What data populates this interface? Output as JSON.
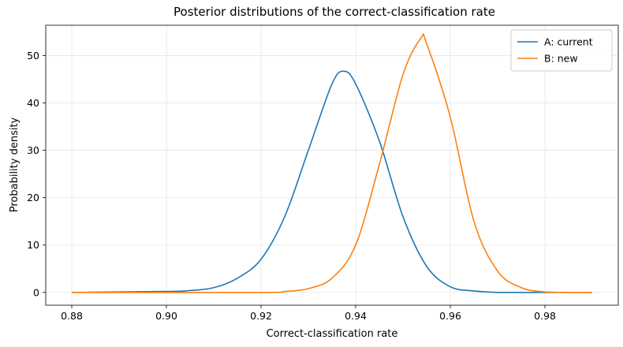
{
  "chart_data": {
    "type": "line",
    "title": "Posterior distributions of the correct-classification rate",
    "xlabel": "Correct-classification rate",
    "ylabel": "Probability density",
    "xlim": [
      0.8745,
      0.9955
    ],
    "ylim": [
      -2.7,
      56.4
    ],
    "x_ticks": [
      0.88,
      0.9,
      0.92,
      0.94,
      0.96,
      0.98
    ],
    "x_tick_labels": [
      "0.88",
      "0.90",
      "0.92",
      "0.94",
      "0.96",
      "0.98"
    ],
    "y_ticks": [
      0,
      10,
      20,
      30,
      40,
      50
    ],
    "y_tick_labels": [
      "0",
      "10",
      "20",
      "30",
      "40",
      "50"
    ],
    "grid": true,
    "legend_position": "top-right",
    "x_range": [
      0.88,
      0.99
    ],
    "series": [
      {
        "name": "A: current",
        "color": "#1f77b4",
        "x": [
          0.88,
          0.9,
          0.905,
          0.91,
          0.915,
          0.92,
          0.925,
          0.93,
          0.935,
          0.9375,
          0.94,
          0.945,
          0.95,
          0.955,
          0.96,
          0.965,
          0.97,
          0.975,
          0.98,
          0.99
        ],
        "y": [
          0.0,
          0.2,
          0.4,
          1.0,
          3.0,
          7.0,
          16.0,
          30.0,
          44.0,
          46.7,
          44.0,
          32.0,
          16.0,
          5.5,
          1.2,
          0.3,
          0.0,
          0.0,
          0.0,
          0.0
        ]
      },
      {
        "name": "B: new",
        "color": "#ff7f0e",
        "x": [
          0.88,
          0.92,
          0.925,
          0.93,
          0.935,
          0.94,
          0.945,
          0.95,
          0.9538,
          0.955,
          0.96,
          0.965,
          0.97,
          0.975,
          0.98,
          0.985,
          0.99
        ],
        "y": [
          0.0,
          0.0,
          0.2,
          0.8,
          3.0,
          10.0,
          27.0,
          46.0,
          53.7,
          52.5,
          37.0,
          15.0,
          4.5,
          1.0,
          0.1,
          0.0,
          0.0
        ]
      }
    ]
  }
}
